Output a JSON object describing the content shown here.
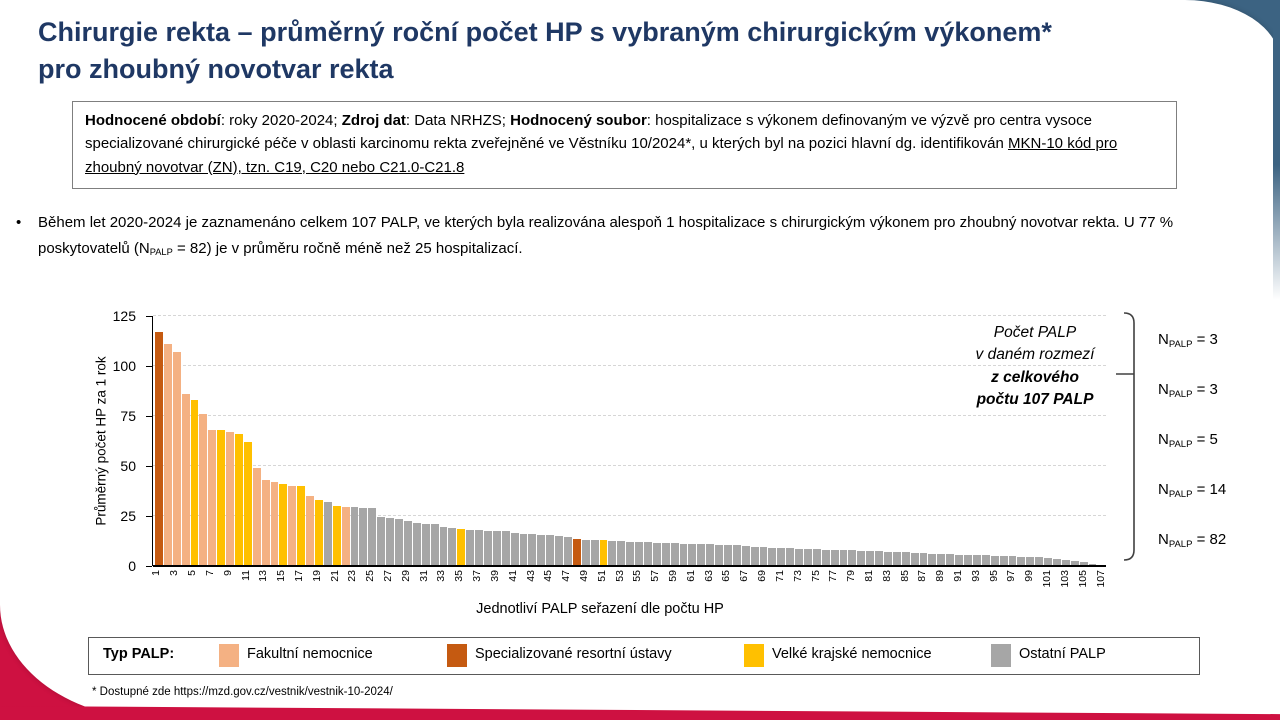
{
  "page": {
    "title_line1": "Chirurgie rekta – průměrný roční počet HP s vybraným chirurgickým výkonem*",
    "title_line2": "pro zhoubný novotvar rekta",
    "footnote": "* Dostupné zde https://mzd.gov.cz/vestnik/vestnik-10-2024/",
    "accent_blue": "#3C6382",
    "accent_red": "#CE1141",
    "title_color": "#1F3864"
  },
  "info_box": {
    "segments": [
      {
        "text": "Hodnocené období",
        "bold": true
      },
      {
        "text": ": roky 2020-2024; "
      },
      {
        "text": "Zdroj dat",
        "bold": true
      },
      {
        "text": ": Data NRHZS; "
      },
      {
        "text": "Hodnocený soubor",
        "bold": true
      },
      {
        "text": ": hospitalizace s výkonem definovaným ve výzvě pro centra vysoce specializované chirurgické péče v oblasti karcinomu rekta zveřejněné ve Věstníku 10/2024*, u kterých byl na pozici hlavní dg. identifikován "
      },
      {
        "text": "MKN-10 kód pro zhoubný novotvar (ZN), tzn. C19, C20 nebo C21.0-C21.8",
        "underline": true
      }
    ]
  },
  "bullet": {
    "marker": "•",
    "segments": [
      {
        "text": "Během let 2020-2024 je zaznamenáno celkem 107 PALP, ve kterých byla realizována alespoň 1 hospitalizace s chirurgickým výkonem pro zhoubný novotvar rekta. U  77 % poskytovatelů (N"
      },
      {
        "text": "PALP",
        "sub": true
      },
      {
        "text": " = 82) je v průměru ročně méně než 25 hospitalizací."
      }
    ]
  },
  "chart_data": {
    "type": "bar",
    "title": "",
    "xlabel": "Jednotliví PALP seřazení dle počtu HP",
    "ylabel": "Průměrný počet HP za 1 rok",
    "ylim": [
      0,
      125
    ],
    "yticks": [
      0,
      25,
      50,
      75,
      100,
      125
    ],
    "grid": "dashed horizontal at each ytick",
    "n_bars": 107,
    "xticks": [
      1,
      3,
      5,
      7,
      9,
      11,
      13,
      15,
      17,
      19,
      21,
      23,
      25,
      27,
      29,
      31,
      33,
      35,
      37,
      39,
      41,
      43,
      45,
      47,
      49,
      51,
      53,
      55,
      57,
      59,
      61,
      63,
      65,
      67,
      69,
      71,
      73,
      75,
      77,
      79,
      81,
      83,
      85,
      87,
      89,
      91,
      93,
      95,
      97,
      99,
      101,
      103,
      105,
      107
    ],
    "type_colors": {
      "F": "#F4B183",
      "S": "#C55A11",
      "K": "#FFC000",
      "O": "#A6A6A6"
    },
    "type_names": {
      "F": "Fakultní nemocnice",
      "S": "Specializované resortní ústavy",
      "K": "Velké krajské nemocnice",
      "O": "Ostatní PALP"
    },
    "values": [
      117,
      111,
      107,
      86,
      83,
      76,
      68,
      68,
      67,
      66,
      62,
      49,
      43,
      42,
      41,
      40,
      40,
      35,
      33,
      32,
      30,
      29.5,
      29.5,
      29,
      29,
      24.5,
      24,
      23.5,
      22.5,
      21.5,
      21,
      21,
      19.5,
      19,
      18.5,
      18,
      17.8,
      17.6,
      17.5,
      17.3,
      16.5,
      16,
      15.8,
      15.6,
      15.4,
      15,
      14.5,
      13.5,
      13,
      13,
      12.8,
      12.7,
      12.4,
      12.2,
      12,
      11.8,
      11.6,
      11.5,
      11.4,
      11.2,
      11.1,
      11,
      10.8,
      10.6,
      10.5,
      10.4,
      10.2,
      9.5,
      9.3,
      9.1,
      9,
      8.9,
      8.7,
      8.6,
      8.4,
      8.2,
      8,
      7.9,
      7.8,
      7.6,
      7.5,
      7.4,
      7.2,
      7,
      6.9,
      6.5,
      6.3,
      6.2,
      6.1,
      5.9,
      5.7,
      5.6,
      5.5,
      5.4,
      5.1,
      4.9,
      4.8,
      4.6,
      4.5,
      4.3,
      3.9,
      3.4,
      3,
      2.5,
      2,
      1.2,
      0.6
    ],
    "bar_types": [
      "S",
      "F",
      "F",
      "F",
      "K",
      "F",
      "F",
      "K",
      "F",
      "K",
      "K",
      "F",
      "F",
      "F",
      "K",
      "F",
      "K",
      "F",
      "K",
      "O",
      "K",
      "F",
      "O",
      "O",
      "O",
      "O",
      "O",
      "O",
      "O",
      "O",
      "O",
      "O",
      "O",
      "O",
      "K",
      "O",
      "O",
      "O",
      "O",
      "O",
      "O",
      "O",
      "O",
      "O",
      "O",
      "O",
      "O",
      "S",
      "O",
      "O",
      "K",
      "O",
      "O",
      "O",
      "O",
      "O",
      "O",
      "O",
      "O",
      "O",
      "O",
      "O",
      "O",
      "O",
      "O",
      "O",
      "O",
      "O",
      "O",
      "O",
      "O",
      "O",
      "O",
      "O",
      "O",
      "O",
      "O",
      "O",
      "O",
      "O",
      "O",
      "O",
      "O",
      "O",
      "O",
      "O",
      "O",
      "O",
      "O",
      "O",
      "O",
      "O",
      "O",
      "O",
      "O",
      "O",
      "O",
      "O",
      "O",
      "O",
      "O",
      "O",
      "O",
      "O",
      "O",
      "O",
      "O"
    ]
  },
  "annotation": {
    "lines": [
      "Počet PALP",
      "v daném rozmezí",
      "z celkového",
      "počtu 107 PALP"
    ],
    "n_labels": [
      {
        "prefix": "N",
        "sub": "PALP",
        "value": "= 3"
      },
      {
        "prefix": "N",
        "sub": "PALP",
        "value": "= 3"
      },
      {
        "prefix": "N",
        "sub": "PALP",
        "value": "= 5"
      },
      {
        "prefix": "N",
        "sub": "PALP",
        "value": "= 14"
      },
      {
        "prefix": "N",
        "sub": "PALP",
        "value": "= 82"
      }
    ]
  },
  "legend": {
    "title": "Typ PALP:",
    "items": [
      {
        "label": "Fakultní nemocnice",
        "color": "#F4B183"
      },
      {
        "label": "Specializované resortní ústavy",
        "color": "#C55A11"
      },
      {
        "label": "Velké krajské nemocnice",
        "color": "#FFC000"
      },
      {
        "label": "Ostatní PALP",
        "color": "#A6A6A6"
      }
    ]
  }
}
